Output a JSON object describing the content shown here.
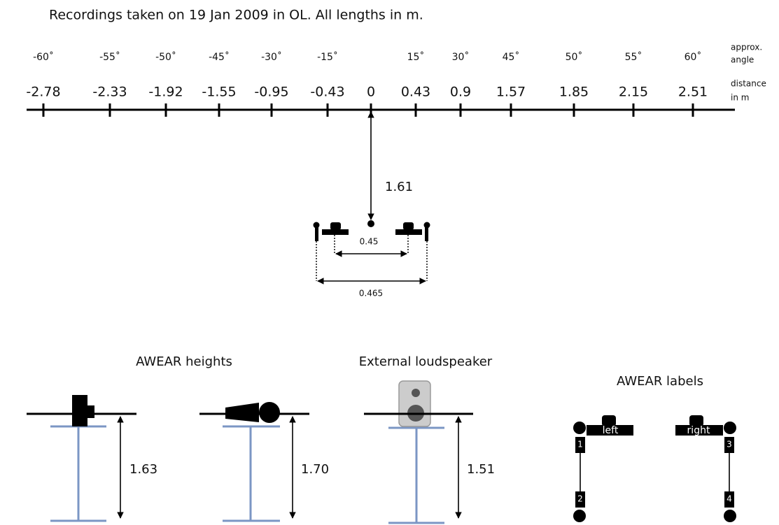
{
  "title": "Recordings taken on 19 Jan 2009 in OL.  All lengths in m.",
  "scale": {
    "angle_label": [
      "approx.",
      "angle"
    ],
    "distance_label": [
      "distance",
      "in m"
    ],
    "ticks": [
      {
        "angle": "-60˚",
        "distance": "-2.78"
      },
      {
        "angle": "-55˚",
        "distance": "-2.33"
      },
      {
        "angle": "-50˚",
        "distance": "-1.92"
      },
      {
        "angle": "-45˚",
        "distance": "-1.55"
      },
      {
        "angle": "-30˚",
        "distance": "-0.95"
      },
      {
        "angle": "-15˚",
        "distance": "-0.43"
      },
      {
        "distance": "0"
      },
      {
        "angle": "15˚",
        "distance": "0.43"
      },
      {
        "angle": "30˚",
        "distance": "0.9"
      },
      {
        "angle": "45˚",
        "distance": "1.57"
      },
      {
        "angle": "50˚",
        "distance": "1.85"
      },
      {
        "angle": "55˚",
        "distance": "2.15"
      },
      {
        "angle": "60˚",
        "distance": "2.51"
      }
    ]
  },
  "array": {
    "distance": "1.61",
    "inner_width": "0.45",
    "outer_width": "0.465"
  },
  "heights": {
    "title": "AWEAR heights",
    "values": [
      "1.63",
      "1.70"
    ]
  },
  "loudspeaker": {
    "title": "External loudspeaker",
    "height": "1.51"
  },
  "labels": {
    "title": "AWEAR labels",
    "left": "left",
    "right": "right",
    "mics": [
      "1",
      "2",
      "3",
      "4"
    ]
  }
}
